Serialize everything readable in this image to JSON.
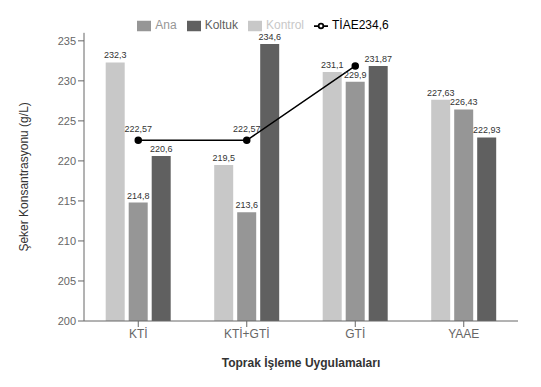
{
  "chart_data": {
    "type": "bar",
    "xlabel": "Toprak İşleme Uygulamaları",
    "ylabel": "Şeker Konsantrasyonu (g/L)",
    "categories": [
      "KTİ",
      "KTİ+GTİ",
      "GTİ",
      "YAAE"
    ],
    "series": [
      {
        "name": "Kontrol",
        "color": "#c8c8c8",
        "values": [
          232.3,
          219.5,
          231.1,
          227.63
        ],
        "value_labels": [
          "232,3",
          "219,5",
          "231,1",
          "227,63"
        ]
      },
      {
        "name": "Ana",
        "color": "#969696",
        "values": [
          214.8,
          213.6,
          229.9,
          226.43
        ],
        "value_labels": [
          "214,8",
          "213,6",
          "229,9",
          "226,43"
        ]
      },
      {
        "name": "Koltuk",
        "color": "#606060",
        "values": [
          220.6,
          234.6,
          231.87,
          222.93
        ],
        "value_labels": [
          "220,6",
          "234,6",
          "231,87",
          "222,93"
        ]
      },
      {
        "name": "TİAE234,6",
        "type": "line",
        "color": "#000000",
        "marker": "circle",
        "values": [
          222.57,
          222.57,
          231.87,
          null
        ],
        "value_labels": [
          "222,57",
          "222,57",
          null,
          null
        ]
      }
    ],
    "ylim": [
      200,
      236
    ],
    "yticks": [
      200,
      205,
      210,
      215,
      220,
      225,
      230,
      235
    ],
    "data_labels": true,
    "legend": "top",
    "grid": false
  }
}
